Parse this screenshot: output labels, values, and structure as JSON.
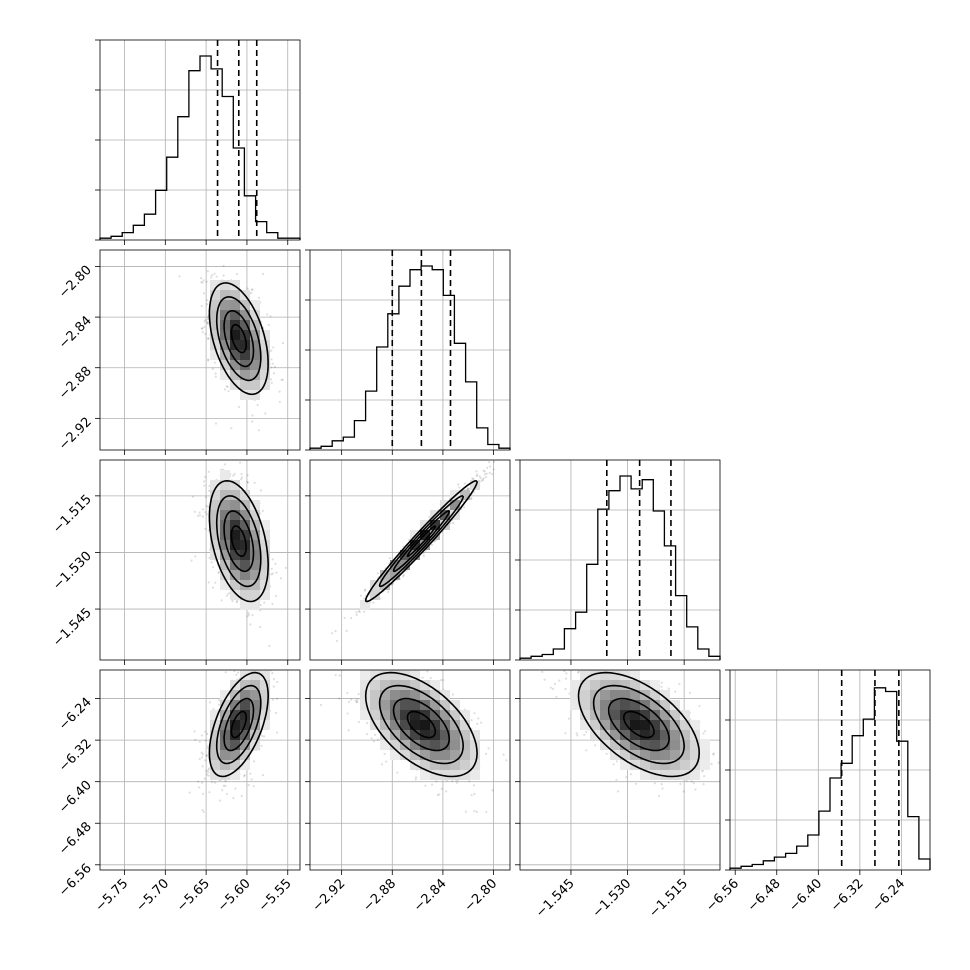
{
  "chart_data": {
    "type": "corner",
    "grid": true,
    "parameters": [
      {
        "index": 0,
        "range": [
          -5.78,
          -5.535
        ],
        "ticks": [
          "−5.75",
          "−5.70",
          "−5.65",
          "−5.60",
          "−5.55"
        ],
        "tick_values": [
          -5.75,
          -5.7,
          -5.65,
          -5.6,
          -5.55
        ],
        "quantiles": [
          -5.636,
          -5.61,
          -5.588
        ],
        "mean": -5.61,
        "std": 0.018
      },
      {
        "index": 1,
        "range": [
          -2.945,
          -2.787
        ],
        "ticks": [
          "−2.92",
          "−2.88",
          "−2.84",
          "−2.80"
        ],
        "tick_values": [
          -2.92,
          -2.88,
          -2.84,
          -2.8
        ],
        "quantiles": [
          -2.88,
          -2.857,
          -2.834
        ],
        "mean": -2.857,
        "std": 0.022
      },
      {
        "index": 2,
        "range": [
          -1.5585,
          -1.5055
        ],
        "ticks": [
          "−1.545",
          "−1.530",
          "−1.515"
        ],
        "tick_values": [
          -1.545,
          -1.53,
          -1.515
        ],
        "quantiles": [
          -1.5355,
          -1.5268,
          -1.5185
        ],
        "mean": -1.527,
        "std": 0.008
      },
      {
        "index": 3,
        "range": [
          -6.57,
          -6.185
        ],
        "ticks": [
          "−6.56",
          "−6.48",
          "−6.40",
          "−6.32",
          "−6.24"
        ],
        "tick_values": [
          -6.56,
          -6.48,
          -6.4,
          -6.32,
          -6.24
        ],
        "quantiles": [
          -6.355,
          -6.291,
          -6.245
        ],
        "mean": -6.29,
        "std": 0.05
      }
    ],
    "correlations": [
      [
        1,
        -0.45,
        -0.4,
        0.55
      ],
      [
        -0.45,
        1,
        0.98,
        -0.55
      ],
      [
        -0.4,
        0.98,
        1,
        -0.55
      ],
      [
        0.55,
        -0.55,
        -0.55,
        1
      ]
    ],
    "histogram_peaks": [
      [
        0.01,
        0.02,
        0.04,
        0.08,
        0.14,
        0.27,
        0.45,
        0.67,
        0.92,
        1.0,
        0.93,
        0.78,
        0.5,
        0.24,
        0.1,
        0.04,
        0.01,
        0.01
      ],
      [
        0.01,
        0.02,
        0.05,
        0.07,
        0.16,
        0.32,
        0.56,
        0.74,
        0.89,
        0.98,
        1.0,
        0.98,
        0.84,
        0.58,
        0.37,
        0.12,
        0.03,
        0.01
      ],
      [
        0.01,
        0.02,
        0.03,
        0.06,
        0.17,
        0.26,
        0.52,
        0.82,
        0.92,
        1.0,
        0.93,
        0.98,
        0.81,
        0.62,
        0.35,
        0.18,
        0.06,
        0.02
      ],
      [
        0.01,
        0.02,
        0.03,
        0.05,
        0.07,
        0.09,
        0.13,
        0.19,
        0.32,
        0.5,
        0.58,
        0.73,
        0.82,
        0.99,
        0.97,
        0.7,
        0.29,
        0.06
      ]
    ]
  }
}
